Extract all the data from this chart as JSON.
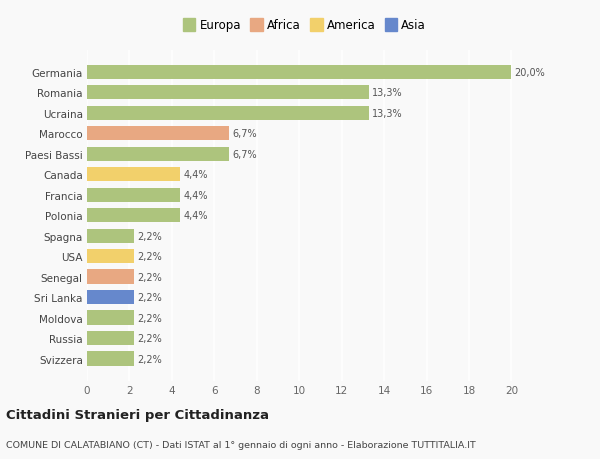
{
  "categories": [
    "Germania",
    "Romania",
    "Ucraina",
    "Marocco",
    "Paesi Bassi",
    "Canada",
    "Francia",
    "Polonia",
    "Spagna",
    "USA",
    "Senegal",
    "Sri Lanka",
    "Moldova",
    "Russia",
    "Svizzera"
  ],
  "values": [
    20.0,
    13.3,
    13.3,
    6.7,
    6.7,
    4.4,
    4.4,
    4.4,
    2.2,
    2.2,
    2.2,
    2.2,
    2.2,
    2.2,
    2.2
  ],
  "continents": [
    "Europa",
    "Europa",
    "Europa",
    "Africa",
    "Europa",
    "America",
    "Europa",
    "Europa",
    "Europa",
    "America",
    "Africa",
    "Asia",
    "Europa",
    "Europa",
    "Europa"
  ],
  "colors": {
    "Europa": "#adc47d",
    "Africa": "#e8a882",
    "America": "#f2d06b",
    "Asia": "#6688cc"
  },
  "labels": [
    "20,0%",
    "13,3%",
    "13,3%",
    "6,7%",
    "6,7%",
    "4,4%",
    "4,4%",
    "4,4%",
    "2,2%",
    "2,2%",
    "2,2%",
    "2,2%",
    "2,2%",
    "2,2%",
    "2,2%"
  ],
  "xlim": [
    0,
    20
  ],
  "xticks": [
    0,
    2,
    4,
    6,
    8,
    10,
    12,
    14,
    16,
    18,
    20
  ],
  "title": "Cittadini Stranieri per Cittadinanza",
  "subtitle": "COMUNE DI CALATABIANO (CT) - Dati ISTAT al 1° gennaio di ogni anno - Elaborazione TUTTITALIA.IT",
  "legend_order": [
    "Europa",
    "Africa",
    "America",
    "Asia"
  ],
  "background_color": "#f9f9f9",
  "bar_height": 0.7
}
